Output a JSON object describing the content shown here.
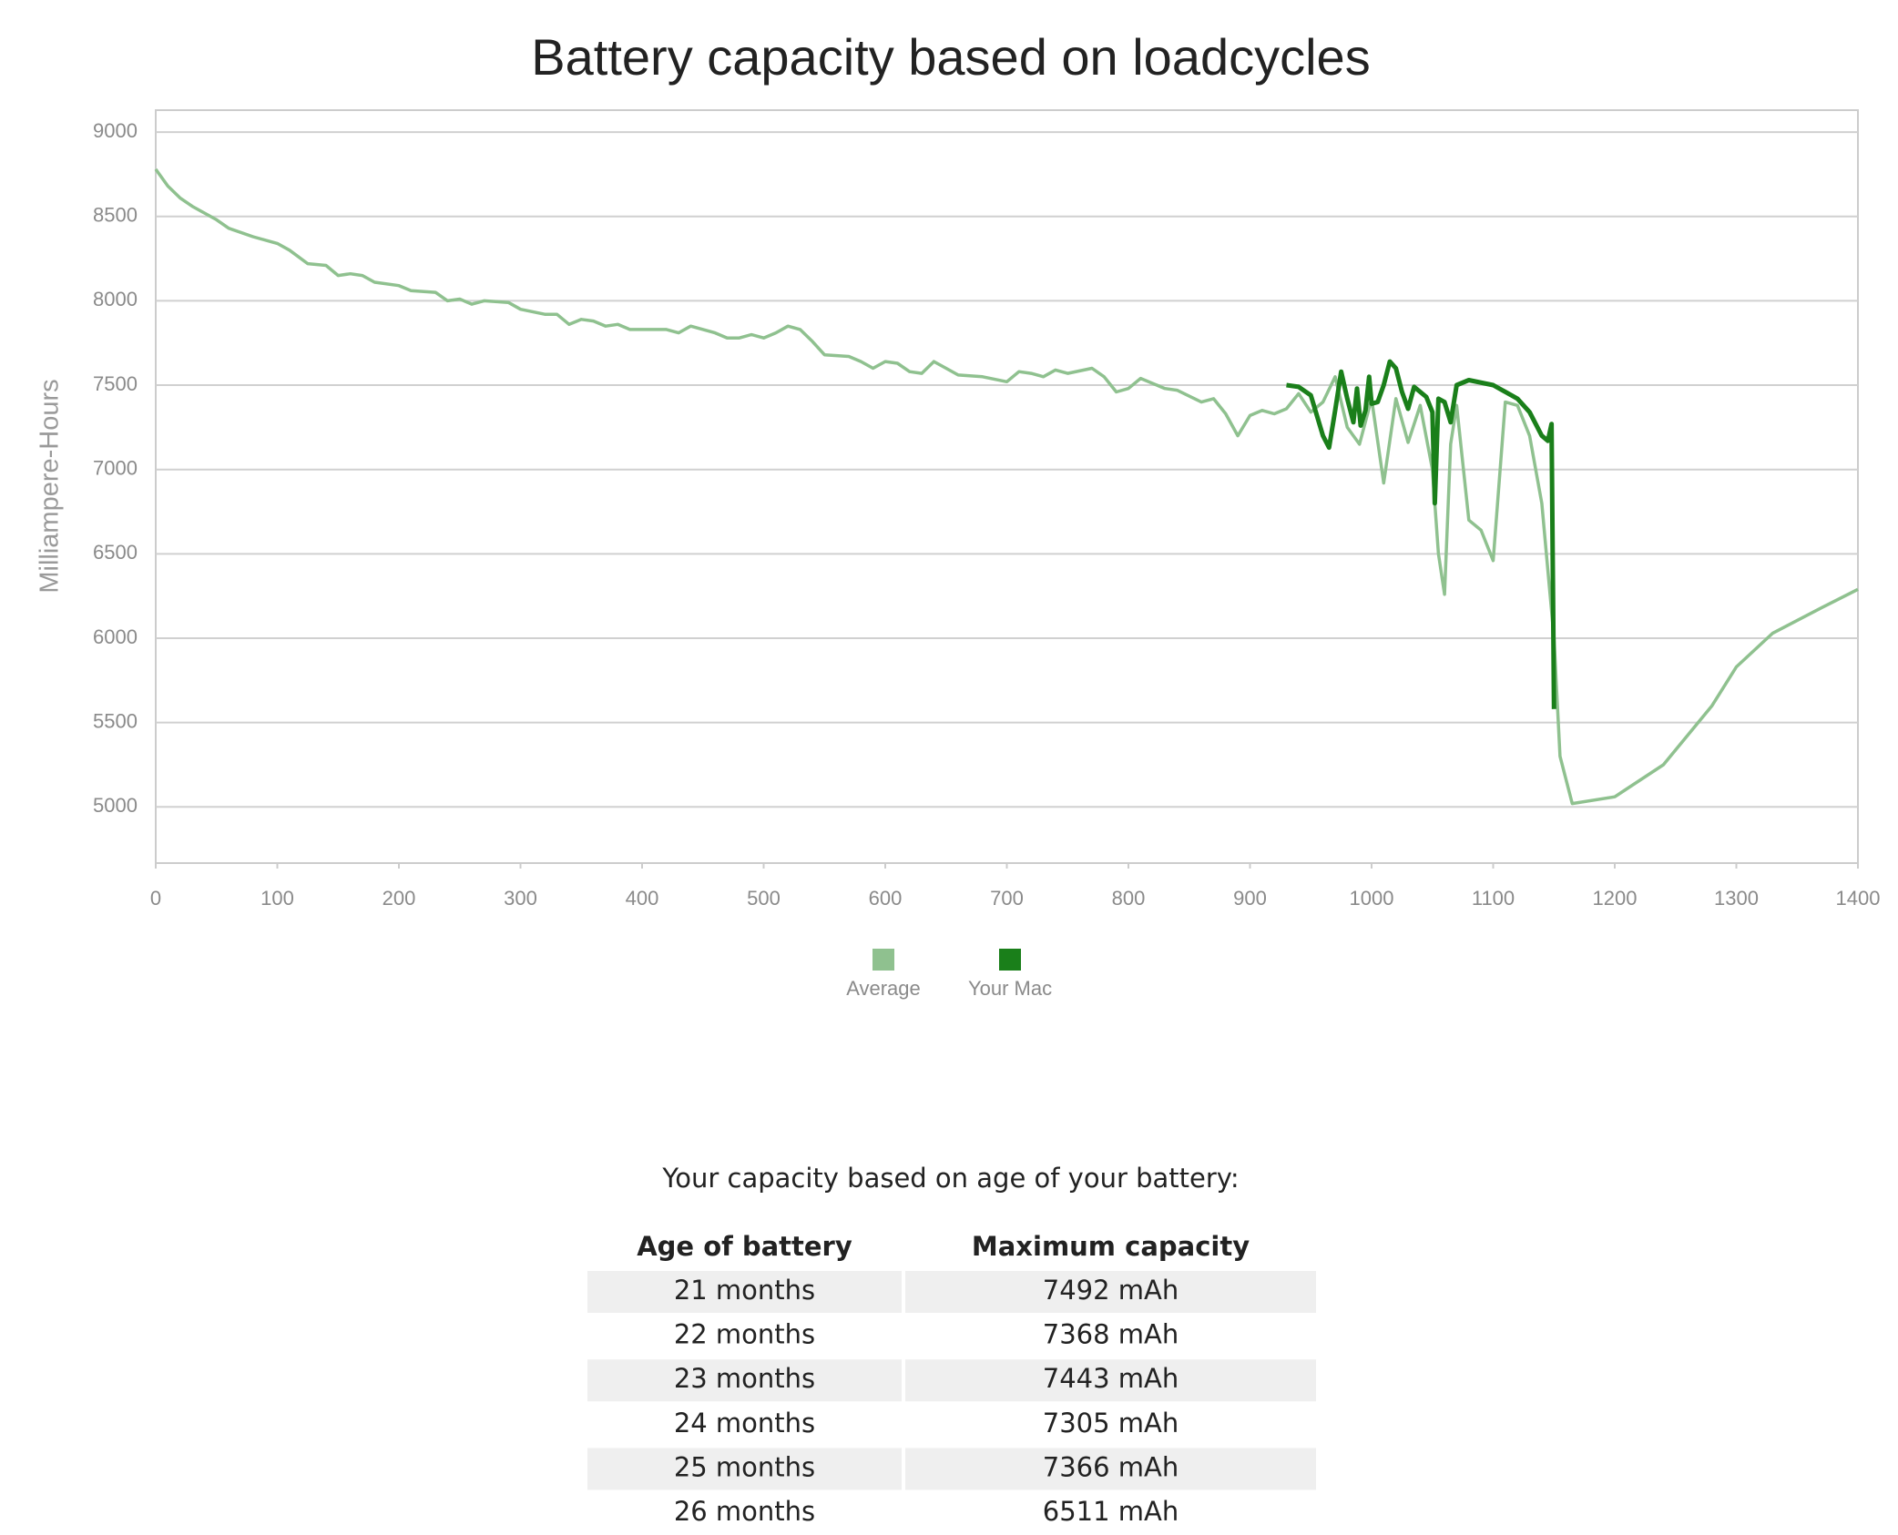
{
  "chart_data": {
    "type": "line",
    "title": "Battery capacity based on loadcycles",
    "y_label": "Milliampere-Hours",
    "xlim": [
      0,
      1400
    ],
    "xticks": [
      0,
      100,
      200,
      300,
      400,
      500,
      600,
      700,
      800,
      900,
      1000,
      1100,
      1200,
      1300,
      1400
    ],
    "ylim": [
      4667,
      9130
    ],
    "yticks": [
      5000,
      5500,
      6000,
      6500,
      7000,
      7500,
      8000,
      8500,
      9000
    ],
    "grid": true,
    "series": [
      {
        "name": "Average",
        "color": "#8fc18f",
        "x": [
          0,
          10,
          20,
          30,
          50,
          60,
          80,
          100,
          110,
          125,
          140,
          150,
          160,
          170,
          180,
          200,
          210,
          230,
          240,
          250,
          260,
          270,
          290,
          300,
          320,
          330,
          340,
          350,
          360,
          370,
          380,
          390,
          420,
          430,
          440,
          460,
          470,
          480,
          490,
          500,
          510,
          520,
          530,
          540,
          550,
          570,
          580,
          590,
          600,
          610,
          620,
          630,
          640,
          650,
          660,
          680,
          700,
          710,
          720,
          730,
          740,
          750,
          770,
          780,
          790,
          800,
          810,
          830,
          840,
          860,
          870,
          880,
          890,
          900,
          910,
          920,
          930,
          940,
          950,
          960,
          970,
          980,
          990,
          1000,
          1010,
          1020,
          1030,
          1040,
          1050,
          1055,
          1060,
          1065,
          1070,
          1080,
          1090,
          1100,
          1110,
          1120,
          1130,
          1140,
          1150,
          1155,
          1165,
          1200,
          1240,
          1280,
          1300,
          1330,
          1370,
          1400
        ],
        "values": [
          8780,
          8680,
          8610,
          8560,
          8480,
          8430,
          8380,
          8340,
          8300,
          8220,
          8210,
          8150,
          8160,
          8150,
          8110,
          8090,
          8060,
          8050,
          8000,
          8010,
          7980,
          8000,
          7990,
          7950,
          7920,
          7920,
          7860,
          7890,
          7880,
          7850,
          7860,
          7830,
          7830,
          7810,
          7850,
          7810,
          7780,
          7780,
          7800,
          7780,
          7810,
          7850,
          7830,
          7760,
          7680,
          7670,
          7640,
          7600,
          7640,
          7630,
          7580,
          7570,
          7640,
          7600,
          7560,
          7550,
          7520,
          7580,
          7570,
          7550,
          7590,
          7570,
          7600,
          7550,
          7460,
          7480,
          7540,
          7480,
          7470,
          7400,
          7420,
          7330,
          7200,
          7320,
          7350,
          7330,
          7360,
          7450,
          7340,
          7400,
          7550,
          7250,
          7150,
          7420,
          6920,
          7420,
          7160,
          7380,
          7000,
          6500,
          6260,
          7150,
          7380,
          6700,
          6640,
          6460,
          7400,
          7380,
          7200,
          6800,
          6000,
          5300,
          5020,
          5060,
          5250,
          5600,
          5830,
          6030,
          6180,
          6290
        ]
      },
      {
        "name": "Your Mac",
        "color": "#1a7f1a",
        "x": [
          930,
          940,
          950,
          960,
          965,
          970,
          975,
          980,
          985,
          988,
          991,
          995,
          998,
          1000,
          1005,
          1010,
          1015,
          1020,
          1025,
          1030,
          1035,
          1045,
          1050,
          1052,
          1055,
          1060,
          1065,
          1070,
          1080,
          1100,
          1120,
          1130,
          1140,
          1145,
          1148,
          1150
        ],
        "values": [
          7500,
          7490,
          7440,
          7200,
          7130,
          7350,
          7580,
          7420,
          7280,
          7480,
          7260,
          7350,
          7550,
          7390,
          7400,
          7500,
          7640,
          7600,
          7460,
          7360,
          7490,
          7430,
          7340,
          6800,
          7420,
          7400,
          7280,
          7500,
          7530,
          7500,
          7420,
          7340,
          7200,
          7170,
          7270,
          5580
        ]
      }
    ]
  },
  "table": {
    "caption": "Your capacity based on age of your battery:",
    "columns": [
      "Age of battery",
      "Maximum capacity"
    ],
    "rows": [
      [
        "21 months",
        "7492 mAh"
      ],
      [
        "22 months",
        "7368 mAh"
      ],
      [
        "23 months",
        "7443 mAh"
      ],
      [
        "24 months",
        "7305 mAh"
      ],
      [
        "25 months",
        "7366 mAh"
      ],
      [
        "26 months",
        "6511 mAh"
      ]
    ]
  }
}
